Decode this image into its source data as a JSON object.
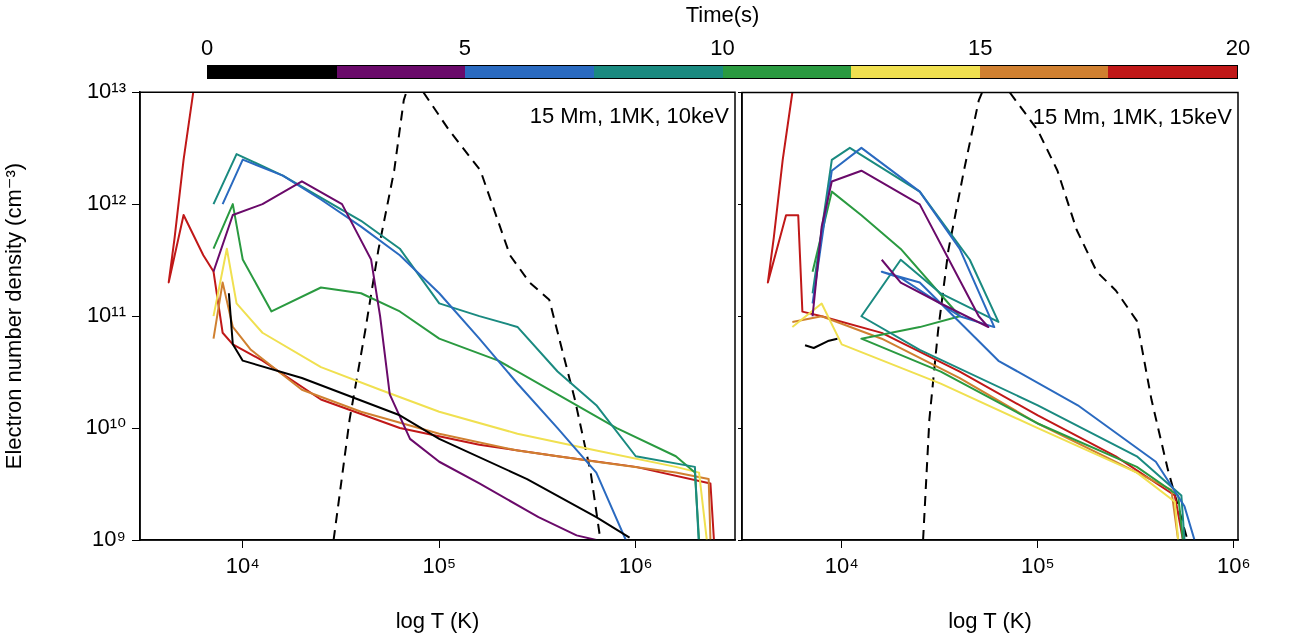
{
  "chart_data": [
    {
      "type": "line",
      "ylabel": "Electron number density (cm⁻³)",
      "xlabel": "log T (K)",
      "clabel": "Time(s)",
      "clim": [
        0,
        20
      ],
      "cticks": [
        0,
        5,
        10,
        15,
        20
      ],
      "log": "xy",
      "grid": false,
      "legend": false,
      "marker": "none",
      "annotations": [
        "15 Mm, 1MK, 10keV"
      ],
      "xlim": [
        3000,
        3200000
      ],
      "xticks": [
        {
          "value": 10000,
          "label": "10⁴"
        },
        {
          "value": 100000,
          "label": "10⁵"
        },
        {
          "value": 1000000,
          "label": "10⁶"
        }
      ],
      "ylim": [
        1000000000.0,
        10000000000000.0
      ],
      "yticks": [
        {
          "value": 1000000000.0,
          "label": "10⁹"
        },
        {
          "value": 10000000000.0,
          "label": "10¹⁰"
        },
        {
          "value": 100000000000.0,
          "label": "10¹¹"
        },
        {
          "value": 1000000000000.0,
          "label": "10¹²"
        },
        {
          "value": 10000000000000.0,
          "label": "10¹³"
        }
      ],
      "series": [
        {
          "color": "#000000",
          "x": [
            8500,
            8900,
            10000,
            20000,
            63000,
            100000,
            280000,
            630000,
            930000
          ],
          "values": [
            160000000000.0,
            56000000000.0,
            40000000000.0,
            28000000000.0,
            13000000000.0,
            8000000000.0,
            3500000000.0,
            1600000000.0,
            1050000000.0
          ]
        },
        {
          "color": "#6a0a6a",
          "x": [
            7100,
            8900,
            12600,
            20000,
            32000,
            45000,
            50000,
            56000,
            71000,
            100000,
            160000,
            320000,
            500000,
            630000
          ],
          "values": [
            250000000000.0,
            800000000000.0,
            1000000000000.0,
            1600000000000.0,
            1000000000000.0,
            320000000000.0,
            100000000000.0,
            20000000000.0,
            8000000000.0,
            5000000000.0,
            3200000000.0,
            1600000000.0,
            1100000000.0,
            1000000000.0
          ]
        },
        {
          "color": "#2a6ac0",
          "x": [
            7900,
            10000,
            16000,
            25000,
            40000,
            63000,
            100000,
            160000,
            250000,
            400000,
            630000,
            890000
          ],
          "values": [
            1000000000000.0,
            2500000000000.0,
            1800000000000.0,
            1100000000000.0,
            630000000000.0,
            350000000000.0,
            160000000000.0,
            63000000000.0,
            25000000000.0,
            10000000000.0,
            4000000000.0,
            1000000000.0
          ]
        },
        {
          "color": "#1a8a80",
          "x": [
            7100,
            9300,
            16000,
            40000,
            63000,
            100000,
            160000,
            250000,
            400000,
            630000,
            1000000,
            2000000,
            2090000
          ],
          "values": [
            1000000000000.0,
            2800000000000.0,
            1800000000000.0,
            710000000000.0,
            400000000000.0,
            130000000000.0,
            100000000000.0,
            80000000000.0,
            32000000000.0,
            16000000000.0,
            5600000000.0,
            4500000000.0,
            1000000000.0
          ]
        },
        {
          "color": "#2a9a40",
          "x": [
            7100,
            8900,
            10000,
            14000,
            25000,
            40000,
            63000,
            100000,
            200000,
            400000,
            800000,
            1600000,
            2000000,
            2100000
          ],
          "values": [
            400000000000.0,
            1000000000000.0,
            320000000000.0,
            110000000000.0,
            180000000000.0,
            160000000000.0,
            110000000000.0,
            63000000000.0,
            40000000000.0,
            20000000000.0,
            10000000000.0,
            5600000000.0,
            4000000000.0,
            1000000000.0
          ]
        },
        {
          "color": "#f0e050",
          "x": [
            7100,
            8300,
            9300,
            12600,
            25000,
            50000,
            100000,
            250000,
            630000,
            1600000,
            2100000,
            2300000
          ],
          "values": [
            100000000000.0,
            400000000000.0,
            130000000000.0,
            71000000000.0,
            35000000000.0,
            22000000000.0,
            14000000000.0,
            8900000000.0,
            6300000000.0,
            4500000000.0,
            4000000000.0,
            1000000000.0
          ]
        },
        {
          "color": "#d08030",
          "x": [
            7100,
            7900,
            8900,
            11000,
            20000,
            40000,
            100000,
            250000,
            630000,
            1600000,
            2350000,
            2400000
          ],
          "values": [
            63000000000.0,
            200000000000.0,
            80000000000.0,
            50000000000.0,
            22000000000.0,
            14000000000.0,
            8900000000.0,
            6300000000.0,
            5000000000.0,
            4000000000.0,
            3500000000.0,
            1000000000.0
          ]
        },
        {
          "color": "#c01818",
          "x": [
            5600,
            5000,
            4500,
            4200,
            5000,
            6300,
            7100,
            7900,
            8900,
            12600,
            25000,
            63000,
            160000,
            400000,
            1000000,
            2400000,
            2500000
          ],
          "values": [
            10000000000000.0,
            2500000000000.0,
            500000000000.0,
            200000000000.0,
            800000000000.0,
            350000000000.0,
            250000000000.0,
            71000000000.0,
            56000000000.0,
            40000000000.0,
            18000000000.0,
            10000000000.0,
            7100000000.0,
            5600000000.0,
            4500000000.0,
            3200000000.0,
            1000000000.0
          ]
        },
        {
          "color": "#000000",
          "line_style": "dashed",
          "x": [
            29000,
            35000,
            42000,
            49000,
            59000,
            66000,
            68000,
            75000,
            83000,
            112000,
            162000,
            229000,
            288000,
            363000,
            490000,
            590000,
            661000
          ],
          "values": [
            1000000000.0,
            12000000000.0,
            74000000000.0,
            390000000000.0,
            2000000000000.0,
            8500000000000.0,
            10000000000000.0,
            null,
            10000000000000.0,
            4600000000000.0,
            2000000000000.0,
            350000000000.0,
            200000000000.0,
            140000000000.0,
            18000000000.0,
            4000000000.0,
            1000000000.0
          ]
        }
      ]
    },
    {
      "type": "line",
      "xlabel": "log T (K)",
      "log": "xy",
      "grid": false,
      "legend": false,
      "marker": "none",
      "tick_labels": "x",
      "annotations": [
        "15 Mm, 1MK, 15keV"
      ],
      "xlim": [
        3100,
        1050000
      ],
      "xticks": [
        {
          "value": 10000,
          "label": "10⁴"
        },
        {
          "value": 100000,
          "label": "10⁵"
        },
        {
          "value": 1000000,
          "label": "10⁶"
        }
      ],
      "ylim": [
        1000000000.0,
        10000000000000.0
      ],
      "yticks": [
        1000000000.0,
        10000000000.0,
        100000000000.0,
        1000000000000.0,
        10000000000000.0
      ],
      "series": [
        {
          "color": "#000000",
          "x": [
            6500,
            7200,
            8500,
            9500
          ],
          "values": [
            55000000000.0,
            52000000000.0,
            60000000000.0,
            63000000000.0
          ]
        },
        {
          "color": "#6a0a6a",
          "x": [
            7100,
            7900,
            8900,
            12600,
            25000,
            50000,
            56000,
            32000,
            20000,
            16000
          ],
          "values": [
            100000000000.0,
            630000000000.0,
            1600000000000.0,
            2000000000000.0,
            1000000000000.0,
            100000000000.0,
            80000000000.0,
            130000000000.0,
            200000000000.0,
            320000000000.0
          ]
        },
        {
          "color": "#2a6ac0",
          "x": [
            7100,
            8900,
            12600,
            25000,
            40000,
            60000,
            40000,
            20000,
            16000,
            25000,
            63000,
            160000,
            400000,
            560000,
            630000
          ],
          "values": [
            130000000000.0,
            2000000000000.0,
            3200000000000.0,
            1300000000000.0,
            400000000000.0,
            80000000000.0,
            100000000000.0,
            220000000000.0,
            250000000000.0,
            200000000000.0,
            40000000000.0,
            16000000000.0,
            5000000000.0,
            2000000000.0,
            1000000000.0
          ]
        },
        {
          "color": "#1a8a80",
          "x": [
            7100,
            8900,
            11000,
            25000,
            45000,
            63000,
            32000,
            20000,
            12600,
            25000,
            100000,
            320000,
            540000,
            560000
          ],
          "values": [
            160000000000.0,
            2500000000000.0,
            3200000000000.0,
            1300000000000.0,
            320000000000.0,
            89000000000.0,
            160000000000.0,
            320000000000.0,
            100000000000.0,
            50000000000.0,
            16000000000.0,
            5600000000.0,
            2500000000.0,
            1000000000.0
          ]
        },
        {
          "color": "#2a9a40",
          "x": [
            7100,
            8900,
            12600,
            20000,
            40000,
            25000,
            12600,
            32000,
            100000,
            320000,
            520000,
            550000
          ],
          "values": [
            250000000000.0,
            1300000000000.0,
            800000000000.0,
            400000000000.0,
            100000000000.0,
            80000000000.0,
            63000000000.0,
            32000000000.0,
            11000000000.0,
            4500000000.0,
            2500000000.0,
            1000000000.0
          ]
        },
        {
          "color": "#f0e050",
          "x": [
            5600,
            7900,
            10000,
            32000,
            100000,
            320000,
            500000,
            520000
          ],
          "values": [
            80000000000.0,
            130000000000.0,
            56000000000.0,
            25000000000.0,
            10000000000.0,
            4000000000.0,
            2200000000.0,
            1000000000.0
          ]
        },
        {
          "color": "#d08030",
          "x": [
            5600,
            7900,
            16000,
            40000,
            100000,
            250000,
            480000,
            520000
          ],
          "values": [
            89000000000.0,
            100000000000.0,
            63000000000.0,
            28000000000.0,
            11000000000.0,
            5000000000.0,
            2800000000.0,
            1000000000.0
          ]
        },
        {
          "color": "#c01818",
          "x": [
            5600,
            5000,
            4500,
            4200,
            5200,
            6000,
            6300,
            7900,
            16000,
            40000,
            100000,
            250000,
            500000,
            550000
          ],
          "values": [
            10000000000000.0,
            2500000000000.0,
            500000000000.0,
            200000000000.0,
            800000000000.0,
            800000000000.0,
            110000000000.0,
            100000000000.0,
            71000000000.0,
            32000000000.0,
            13000000000.0,
            5600000000.0,
            2500000000.0,
            1000000000.0
          ]
        },
        {
          "color": "#000000",
          "line_style": "dashed",
          "x": [
            26000,
            28000,
            31000,
            35000,
            42000,
            50000,
            52000,
            60000,
            72000,
            100000,
            126000,
            158000,
            200000,
            250000,
            320000,
            380000,
            460000,
            580000
          ],
          "values": [
            1000000000.0,
            12000000000.0,
            74000000000.0,
            390000000000.0,
            2000000000000.0,
            8500000000000.0,
            10000000000000.0,
            null,
            10000000000000.0,
            4600000000000.0,
            2000000000000.0,
            590000000000.0,
            250000000000.0,
            170000000000.0,
            91000000000.0,
            18000000000.0,
            4300000000.0,
            1000000000.0
          ]
        }
      ]
    }
  ]
}
